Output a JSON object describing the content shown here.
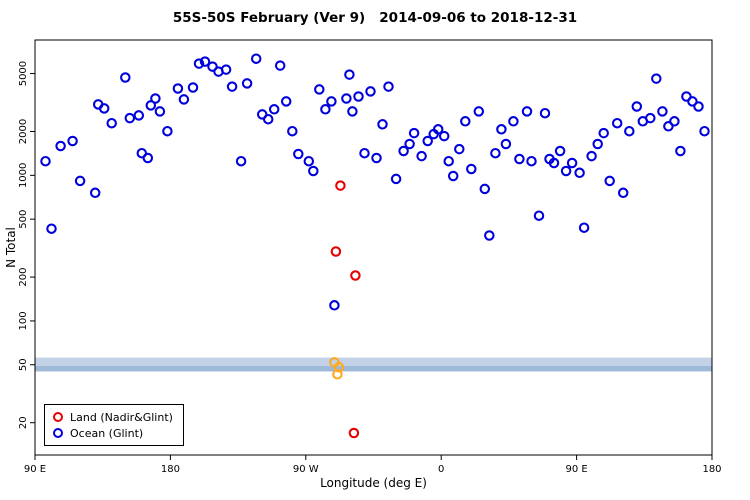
{
  "chart_data": {
    "type": "scatter",
    "title": "55S-50S February (Ver 9)   2014-09-06 to 2018-12-31",
    "xlabel": "Longitude (deg E)",
    "ylabel": "N Total",
    "x_axis": {
      "scale": "linear",
      "min": 90,
      "max": 540,
      "ticks": [
        {
          "pos": 90,
          "label": "90 E"
        },
        {
          "pos": 180,
          "label": "180"
        },
        {
          "pos": 270,
          "label": "90 W"
        },
        {
          "pos": 360,
          "label": "0"
        },
        {
          "pos": 450,
          "label": "90 E"
        },
        {
          "pos": 540,
          "label": "180"
        }
      ]
    },
    "y_axis": {
      "scale": "log",
      "min": 12,
      "max": 8500,
      "ticks": [
        20,
        50,
        100,
        200,
        500,
        1000,
        2000,
        5000
      ]
    },
    "bands": [
      {
        "from": 49,
        "to": 56,
        "color": "#c3d2e6"
      },
      {
        "from": 45,
        "to": 49,
        "color": "#9fb9d9"
      }
    ],
    "series": [
      {
        "key": "land",
        "name": "Land (Nadir&Glint)",
        "color": "#e60000",
        "marker": "open-circle",
        "points": [
          [
            293,
            850
          ],
          [
            290,
            300
          ],
          [
            303,
            205
          ],
          [
            302,
            17
          ]
        ]
      },
      {
        "key": "ocean",
        "name": "Ocean (Glint)",
        "color": "#0000dd",
        "marker": "open-circle",
        "points": [
          [
            97,
            1250
          ],
          [
            101,
            430
          ],
          [
            107,
            1590
          ],
          [
            115,
            1720
          ],
          [
            120,
            915
          ],
          [
            130,
            758
          ],
          [
            132,
            3070
          ],
          [
            136,
            2880
          ],
          [
            141,
            2280
          ],
          [
            150,
            4700
          ],
          [
            153,
            2470
          ],
          [
            159,
            2580
          ],
          [
            161,
            1420
          ],
          [
            165,
            1315
          ],
          [
            167,
            3020
          ],
          [
            170,
            3370
          ],
          [
            173,
            2750
          ],
          [
            178,
            2010
          ],
          [
            185,
            3950
          ],
          [
            189,
            3320
          ],
          [
            195,
            4010
          ],
          [
            199,
            5850
          ],
          [
            203,
            6040
          ],
          [
            208,
            5580
          ],
          [
            212,
            5160
          ],
          [
            217,
            5320
          ],
          [
            221,
            4070
          ],
          [
            227,
            1250
          ],
          [
            231,
            4280
          ],
          [
            237,
            6320
          ],
          [
            241,
            2620
          ],
          [
            245,
            2430
          ],
          [
            249,
            2840
          ],
          [
            253,
            5670
          ],
          [
            257,
            3220
          ],
          [
            261,
            2010
          ],
          [
            265,
            1400
          ],
          [
            272,
            1250
          ],
          [
            275,
            1070
          ],
          [
            279,
            3890
          ],
          [
            283,
            2840
          ],
          [
            287,
            3220
          ],
          [
            289,
            128
          ],
          [
            297,
            3370
          ],
          [
            299,
            4920
          ],
          [
            301,
            2750
          ],
          [
            305,
            3480
          ],
          [
            309,
            1420
          ],
          [
            313,
            3770
          ],
          [
            317,
            1315
          ],
          [
            321,
            2240
          ],
          [
            325,
            4070
          ],
          [
            330,
            945
          ],
          [
            335,
            1470
          ],
          [
            339,
            1640
          ],
          [
            342,
            1950
          ],
          [
            347,
            1355
          ],
          [
            351,
            1720
          ],
          [
            355,
            1920
          ],
          [
            358,
            2070
          ],
          [
            362,
            1860
          ],
          [
            365,
            1250
          ],
          [
            368,
            990
          ],
          [
            372,
            1515
          ],
          [
            376,
            2350
          ],
          [
            380,
            1105
          ],
          [
            385,
            2750
          ],
          [
            389,
            807
          ],
          [
            392,
            386
          ],
          [
            396,
            1420
          ],
          [
            400,
            2070
          ],
          [
            403,
            1640
          ],
          [
            408,
            2350
          ],
          [
            412,
            1295
          ],
          [
            417,
            2750
          ],
          [
            420,
            1250
          ],
          [
            425,
            528
          ],
          [
            429,
            2670
          ],
          [
            432,
            1295
          ],
          [
            435,
            1215
          ],
          [
            439,
            1470
          ],
          [
            443,
            1070
          ],
          [
            447,
            1215
          ],
          [
            452,
            1040
          ],
          [
            455,
            437
          ],
          [
            460,
            1355
          ],
          [
            464,
            1640
          ],
          [
            468,
            1950
          ],
          [
            472,
            915
          ],
          [
            477,
            2280
          ],
          [
            481,
            758
          ],
          [
            485,
            2010
          ],
          [
            490,
            2970
          ],
          [
            494,
            2350
          ],
          [
            499,
            2470
          ],
          [
            503,
            4620
          ],
          [
            507,
            2750
          ],
          [
            511,
            2170
          ],
          [
            515,
            2350
          ],
          [
            519,
            1470
          ],
          [
            523,
            3480
          ],
          [
            527,
            3220
          ],
          [
            531,
            2970
          ],
          [
            535,
            2010
          ]
        ]
      },
      {
        "key": "band-highlight",
        "name": "",
        "color": "#ffa91e",
        "marker": "open-circle",
        "points": [
          [
            289,
            52
          ],
          [
            292,
            48
          ],
          [
            291,
            43
          ]
        ]
      }
    ],
    "legend": {
      "position": "bottom-left"
    }
  }
}
